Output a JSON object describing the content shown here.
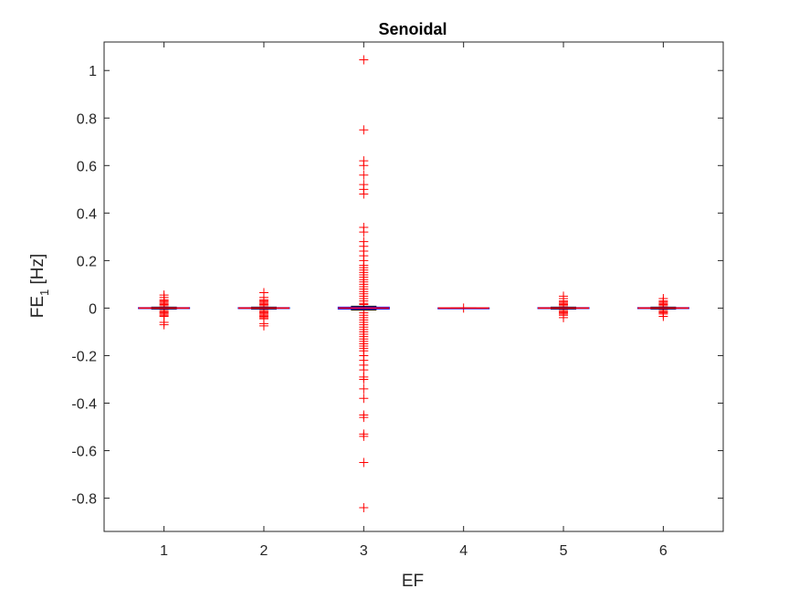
{
  "chart_data": {
    "type": "boxplot",
    "title": "Senoidal",
    "xlabel": "EF",
    "ylabel": {
      "base": "FE",
      "sub": "1",
      "rest": " [Hz]"
    },
    "xlim": [
      0.4,
      6.6
    ],
    "ylim": [
      -0.94,
      1.12
    ],
    "xticks": [
      1,
      2,
      3,
      4,
      5,
      6
    ],
    "yticks": [
      -0.8,
      -0.6,
      -0.4,
      -0.2,
      0,
      0.2,
      0.4,
      0.6,
      0.8,
      1
    ],
    "ytick_labels": [
      "-0.8",
      "-0.6",
      "-0.4",
      "-0.2",
      "0",
      "0.2",
      "0.4",
      "0.6",
      "0.8",
      "1"
    ],
    "grid": false,
    "colors": {
      "box": "#0000ff",
      "median": "#ff0000",
      "outlier": "#ff0000",
      "whisker": "#000000",
      "axis": "#262626"
    },
    "groups": [
      {
        "x": 1,
        "q1": -0.002,
        "median": 0,
        "q3": 0.002,
        "whisker_low": -0.004,
        "whisker_high": 0.004,
        "outliers": [
          0.055,
          0.045,
          0.035,
          0.03,
          0.025,
          0.02,
          0.015,
          0.01,
          -0.01,
          -0.015,
          -0.02,
          -0.025,
          -0.03,
          -0.035,
          -0.06,
          -0.07
        ]
      },
      {
        "x": 2,
        "q1": -0.002,
        "median": 0,
        "q3": 0.002,
        "whisker_low": -0.004,
        "whisker_high": 0.004,
        "outliers": [
          0.065,
          0.045,
          0.035,
          0.03,
          0.025,
          0.02,
          0.015,
          0.01,
          -0.01,
          -0.015,
          -0.02,
          -0.025,
          -0.03,
          -0.035,
          -0.04,
          -0.045,
          -0.065,
          -0.075
        ]
      },
      {
        "x": 3,
        "q1": -0.004,
        "median": 0,
        "q3": 0.004,
        "whisker_low": -0.008,
        "whisker_high": 0.008,
        "outliers": [
          1.045,
          0.75,
          0.62,
          0.6,
          0.56,
          0.52,
          0.5,
          0.48,
          0.34,
          0.32,
          0.28,
          0.26,
          0.24,
          0.22,
          0.2,
          0.18,
          0.17,
          0.16,
          0.15,
          0.14,
          0.13,
          0.12,
          0.11,
          0.1,
          0.09,
          0.08,
          0.07,
          0.06,
          0.05,
          0.04,
          0.03,
          0.02,
          0.015,
          -0.02,
          -0.03,
          -0.04,
          -0.05,
          -0.06,
          -0.07,
          -0.08,
          -0.09,
          -0.1,
          -0.11,
          -0.12,
          -0.13,
          -0.14,
          -0.15,
          -0.16,
          -0.17,
          -0.18,
          -0.2,
          -0.22,
          -0.24,
          -0.26,
          -0.29,
          -0.3,
          -0.34,
          -0.38,
          -0.45,
          -0.46,
          -0.53,
          -0.54,
          -0.65,
          -0.84
        ]
      },
      {
        "x": 4,
        "q1": -0.001,
        "median": 0,
        "q3": 0.001,
        "whisker_low": -0.001,
        "whisker_high": 0.001,
        "outliers": [
          0
        ]
      },
      {
        "x": 5,
        "q1": -0.002,
        "median": 0,
        "q3": 0.002,
        "whisker_low": -0.004,
        "whisker_high": 0.004,
        "outliers": [
          0.05,
          0.04,
          0.03,
          0.025,
          0.02,
          0.015,
          0.01,
          -0.01,
          -0.015,
          -0.02,
          -0.025,
          -0.03,
          -0.04
        ]
      },
      {
        "x": 6,
        "q1": -0.002,
        "median": 0,
        "q3": 0.002,
        "whisker_low": -0.004,
        "whisker_high": 0.004,
        "outliers": [
          0.04,
          0.03,
          0.025,
          0.02,
          0.015,
          0.01,
          -0.01,
          -0.015,
          -0.02,
          -0.025,
          -0.035
        ]
      }
    ]
  }
}
